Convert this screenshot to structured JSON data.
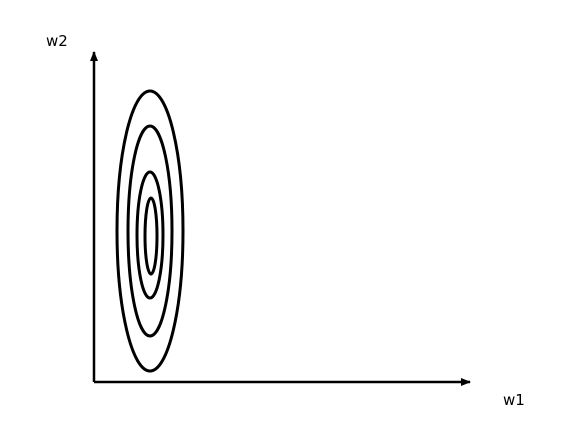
{
  "diagram": {
    "type": "contour-plot",
    "axes": {
      "x_label": "w1",
      "y_label": "w2"
    },
    "contour_count": 4,
    "stroke_color": "#000000",
    "background_color": "#ffffff"
  }
}
